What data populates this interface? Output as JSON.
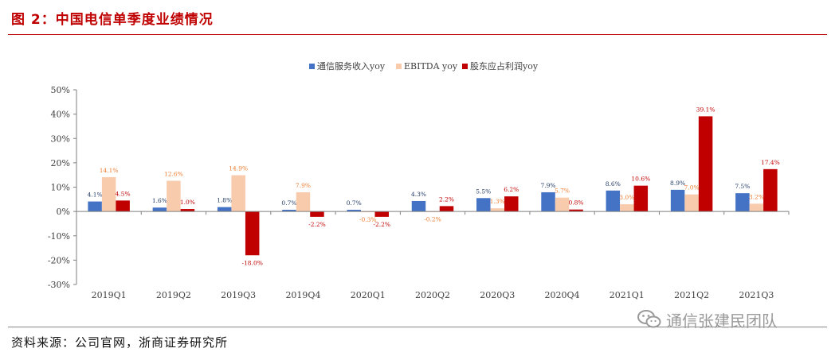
{
  "figure": {
    "title": "图 2：中国电信单季度业绩情况",
    "source": "资料来源：公司官网，浙商证券研究所",
    "watermark": "通信张建民团队"
  },
  "chart_data": {
    "type": "bar",
    "title": "",
    "xlabel": "",
    "ylabel": "",
    "ylim": [
      -30,
      50
    ],
    "yticks": [
      -30,
      -20,
      -10,
      0,
      10,
      20,
      30,
      40,
      50
    ],
    "ytick_labels": [
      "-30%",
      "-20%",
      "-10%",
      "0%",
      "10%",
      "20%",
      "30%",
      "40%",
      "50%"
    ],
    "legend_position": "top-center",
    "categories": [
      "2019Q1",
      "2019Q2",
      "2019Q3",
      "2019Q4",
      "2020Q1",
      "2020Q2",
      "2020Q3",
      "2020Q4",
      "2021Q1",
      "2021Q2",
      "2021Q3"
    ],
    "series": [
      {
        "name": "通信服务收入yoy",
        "color": "#4472c4",
        "label_color": "#1f3864",
        "values": [
          4.1,
          1.6,
          1.8,
          0.7,
          0.7,
          4.3,
          5.5,
          7.9,
          8.6,
          8.9,
          7.5
        ],
        "labels": [
          "4.1%",
          "1.6%",
          "1.8%",
          "0.7%",
          "0.7%",
          "4.3%",
          "5.5%",
          "7.9%",
          "8.6%",
          "8.9%",
          "7.5%"
        ]
      },
      {
        "name": "EBITDA yoy",
        "color": "#f8cbad",
        "label_color": "#ed7d31",
        "values": [
          14.1,
          12.6,
          14.9,
          7.9,
          -0.3,
          -0.2,
          1.3,
          5.7,
          3.0,
          7.0,
          3.2
        ],
        "labels": [
          "14.1%",
          "12.6%",
          "14.9%",
          "7.9%",
          "-0.3%",
          "-0.2%",
          "1.3%",
          "5.7%",
          "3.0%",
          "7.0%",
          "3.2%"
        ]
      },
      {
        "name": "股东应占利润yoy",
        "color": "#c00000",
        "label_color": "#c00000",
        "values": [
          4.5,
          1.0,
          -18.0,
          -2.2,
          -2.2,
          2.2,
          6.2,
          0.8,
          10.6,
          39.1,
          17.4
        ],
        "labels": [
          "4.5%",
          "1.0%",
          "-18.0%",
          "-2.2%",
          "-2.2%",
          "2.2%",
          "6.2%",
          "0.8%",
          "10.6%",
          "39.1%",
          "17.4%"
        ]
      }
    ]
  }
}
